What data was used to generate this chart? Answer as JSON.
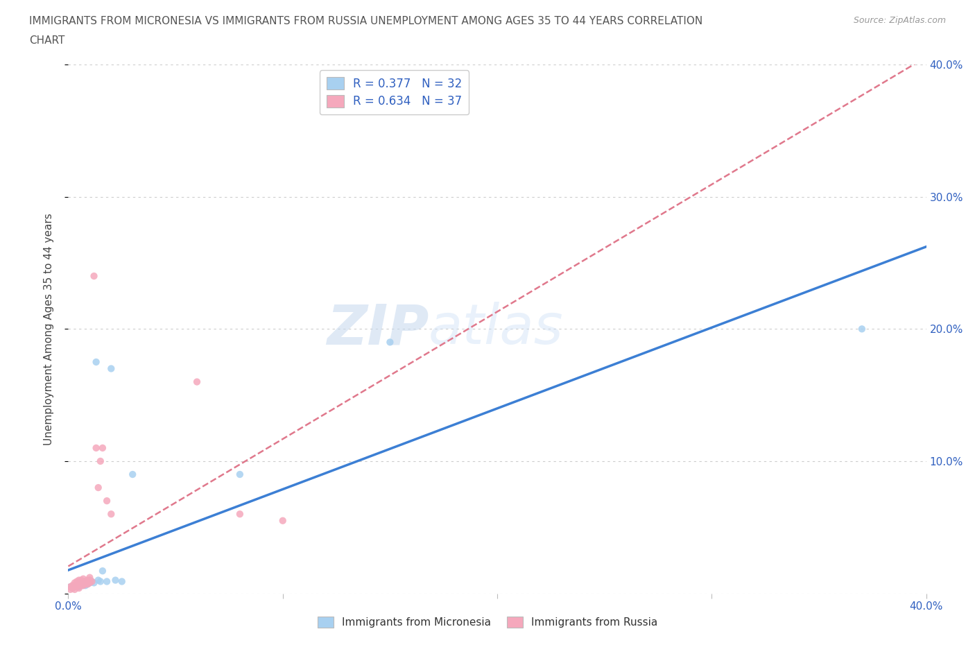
{
  "title_line1": "IMMIGRANTS FROM MICRONESIA VS IMMIGRANTS FROM RUSSIA UNEMPLOYMENT AMONG AGES 35 TO 44 YEARS CORRELATION",
  "title_line2": "CHART",
  "source": "Source: ZipAtlas.com",
  "ylabel": "Unemployment Among Ages 35 to 44 years",
  "xlim": [
    0.0,
    0.4
  ],
  "ylim": [
    0.0,
    0.4
  ],
  "xticks": [
    0.0,
    0.1,
    0.2,
    0.3,
    0.4
  ],
  "yticks": [
    0.0,
    0.1,
    0.2,
    0.3,
    0.4
  ],
  "xticklabels": [
    "0.0%",
    "",
    "",
    "",
    "40.0%"
  ],
  "yticklabels_right": [
    "",
    "10.0%",
    "20.0%",
    "30.0%",
    "40.0%"
  ],
  "micronesia_color": "#a8d0f0",
  "russia_color": "#f5a8bc",
  "micronesia_line_color": "#3c7fd4",
  "russia_line_color": "#e0788c",
  "R_micronesia": 0.377,
  "N_micronesia": 32,
  "R_russia": 0.634,
  "N_russia": 37,
  "watermark": "ZIPatlas",
  "micronesia_x": [
    0.001,
    0.002,
    0.003,
    0.004,
    0.005,
    0.005,
    0.005,
    0.006,
    0.006,
    0.007,
    0.007,
    0.008,
    0.008,
    0.008,
    0.009,
    0.009,
    0.01,
    0.01,
    0.011,
    0.012,
    0.013,
    0.014,
    0.015,
    0.016,
    0.018,
    0.02,
    0.022,
    0.025,
    0.03,
    0.08,
    0.15,
    0.37
  ],
  "micronesia_y": [
    0.005,
    0.004,
    0.005,
    0.006,
    0.007,
    0.005,
    0.008,
    0.006,
    0.008,
    0.006,
    0.007,
    0.006,
    0.007,
    0.009,
    0.007,
    0.009,
    0.008,
    0.01,
    0.009,
    0.008,
    0.175,
    0.01,
    0.009,
    0.017,
    0.009,
    0.17,
    0.01,
    0.009,
    0.09,
    0.09,
    0.19,
    0.2
  ],
  "russia_x": [
    0.001,
    0.001,
    0.002,
    0.002,
    0.003,
    0.003,
    0.003,
    0.004,
    0.004,
    0.004,
    0.005,
    0.005,
    0.005,
    0.006,
    0.006,
    0.006,
    0.007,
    0.007,
    0.007,
    0.008,
    0.008,
    0.009,
    0.009,
    0.01,
    0.01,
    0.01,
    0.011,
    0.012,
    0.013,
    0.014,
    0.015,
    0.016,
    0.018,
    0.02,
    0.06,
    0.08,
    0.1
  ],
  "russia_y": [
    0.003,
    0.005,
    0.004,
    0.006,
    0.003,
    0.006,
    0.008,
    0.005,
    0.007,
    0.009,
    0.004,
    0.007,
    0.01,
    0.006,
    0.008,
    0.01,
    0.006,
    0.009,
    0.011,
    0.007,
    0.009,
    0.007,
    0.01,
    0.008,
    0.01,
    0.012,
    0.009,
    0.24,
    0.11,
    0.08,
    0.1,
    0.11,
    0.07,
    0.06,
    0.16,
    0.06,
    0.055
  ]
}
